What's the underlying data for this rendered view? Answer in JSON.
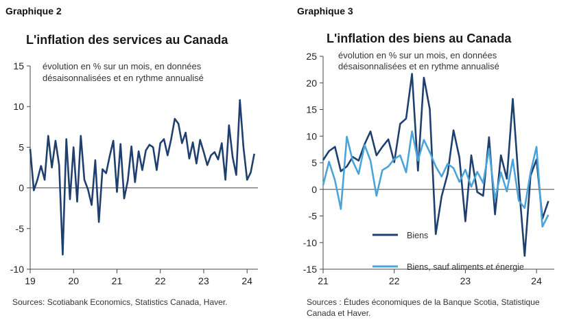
{
  "left": {
    "graph_label": "Graphique 2",
    "source": "Sources: Scotiabank Economics, Statistics Canada, Haver.",
    "chart_data": {
      "type": "line",
      "title": "L'inflation des services au Canada",
      "note": "évolution en % sur un mois, en données désaisonnalisées et en rythme annualisé",
      "xlabel": "",
      "ylabel": "",
      "ylim": [
        -10,
        15
      ],
      "yticks": [
        -10,
        -5,
        0,
        5,
        10,
        15
      ],
      "xlim": [
        2019,
        2024.25
      ],
      "xticks": [
        {
          "v": 2019,
          "label": "19"
        },
        {
          "v": 2020,
          "label": "20"
        },
        {
          "v": 2021,
          "label": "21"
        },
        {
          "v": 2022,
          "label": "22"
        },
        {
          "v": 2023,
          "label": "23"
        },
        {
          "v": 2024,
          "label": "24"
        }
      ],
      "series": [
        {
          "name": "",
          "color": "#1f3f6e",
          "start": 2019.0,
          "step_months": 1,
          "values": [
            4.8,
            -0.3,
            1.0,
            2.7,
            1.0,
            6.4,
            2.5,
            5.8,
            2.8,
            -8.2,
            6.0,
            -1.4,
            5.0,
            -1.7,
            6.4,
            1.0,
            -0.2,
            -2.1,
            3.4,
            -4.2,
            2.3,
            1.8,
            3.9,
            5.8,
            -0.5,
            5.4,
            -1.3,
            0.9,
            5.1,
            0.7,
            4.5,
            2.2,
            4.6,
            5.3,
            5.0,
            2.2,
            5.5,
            6.0,
            4.0,
            6.0,
            8.5,
            7.9,
            5.5,
            6.8,
            3.6,
            5.6,
            3.0,
            5.9,
            4.4,
            2.8,
            4.0,
            4.4,
            3.5,
            5.5,
            1.0,
            7.7,
            3.8,
            1.6,
            10.8,
            5.0,
            1.0,
            1.9,
            4.2
          ]
        }
      ]
    }
  },
  "right": {
    "graph_label": "Graphique 3",
    "source": "Sources : Études économiques de la Banque Scotia, Statistique Canada et Haver.",
    "chart_data": {
      "type": "line",
      "title": "L'inflation des biens au Canada",
      "note": "évolution en % sur un mois, en données désaisonnalisées et en rythme annualisé",
      "xlabel": "",
      "ylabel": "",
      "ylim": [
        -15,
        25
      ],
      "yticks": [
        -15,
        -10,
        -5,
        0,
        5,
        10,
        15,
        20,
        25
      ],
      "xlim": [
        2021,
        2024.25
      ],
      "xticks": [
        {
          "v": 2021,
          "label": "21"
        },
        {
          "v": 2022,
          "label": "22"
        },
        {
          "v": 2023,
          "label": "23"
        },
        {
          "v": 2024,
          "label": "24"
        }
      ],
      "legend": "lower-left",
      "series": [
        {
          "name": "Biens",
          "color": "#1f3f6e",
          "start": 2021.0,
          "step_months": 1,
          "values": [
            5.5,
            7.2,
            8.0,
            3.4,
            4.3,
            6.1,
            5.4,
            8.5,
            10.9,
            6.4,
            8.0,
            9.4,
            5.1,
            12.3,
            13.3,
            21.7,
            3.5,
            21.0,
            15.1,
            -8.4,
            -1.3,
            2.9,
            11.1,
            6.0,
            -6.0,
            6.4,
            -0.5,
            -1.2,
            9.8,
            -4.7,
            6.4,
            2.0,
            17.0,
            1.3,
            -12.5,
            2.6,
            5.6,
            -5.5,
            -2.2
          ]
        },
        {
          "name": "Biens, sauf aliments et énergie",
          "color": "#4aa3d9",
          "start": 2021.0,
          "step_months": 1,
          "values": [
            0.8,
            5.2,
            1.7,
            -3.7,
            9.9,
            5.3,
            2.9,
            8.3,
            5.4,
            -1.2,
            3.6,
            4.3,
            5.7,
            6.4,
            3.2,
            10.9,
            5.4,
            9.3,
            7.0,
            4.3,
            2.4,
            4.8,
            4.0,
            1.4,
            3.7,
            0.5,
            3.3,
            1.2,
            7.6,
            -1.9,
            3.2,
            -0.4,
            5.6,
            -2.1,
            -3.5,
            3.2,
            8.0,
            -7.0,
            -4.8
          ]
        }
      ]
    }
  }
}
